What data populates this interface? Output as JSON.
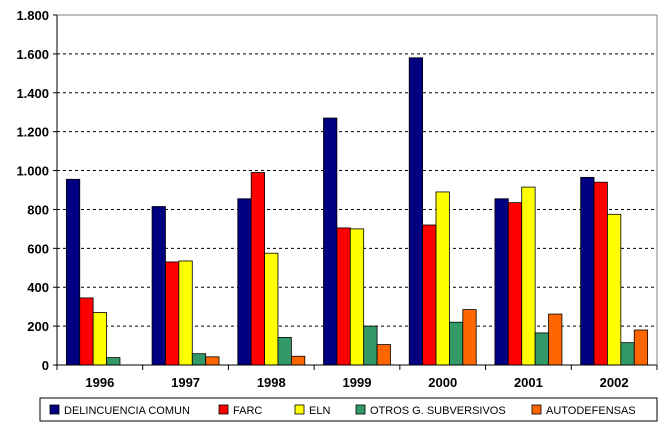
{
  "chart_data": {
    "type": "bar",
    "title": "",
    "xlabel": "",
    "ylabel": "",
    "ylim": [
      0,
      1800
    ],
    "yticks": [
      0,
      200,
      400,
      600,
      800,
      1000,
      1200,
      1400,
      1600,
      1800
    ],
    "ytick_labels": [
      "0",
      "200",
      "400",
      "600",
      "800",
      "1.000",
      "1.200",
      "1.400",
      "1.600",
      "1.800"
    ],
    "grid": "horizontal-dashed",
    "legend_position": "bottom",
    "categories": [
      "1996",
      "1997",
      "1998",
      "1999",
      "2000",
      "2001",
      "2002"
    ],
    "series": [
      {
        "name": "DELINCUENCIA COMUN",
        "color": "#000080",
        "values": [
          955,
          815,
          855,
          1270,
          1580,
          855,
          965
        ]
      },
      {
        "name": "FARC",
        "color": "#ff0000",
        "values": [
          345,
          530,
          990,
          705,
          720,
          835,
          940
        ]
      },
      {
        "name": "ELN",
        "color": "#ffff00",
        "values": [
          270,
          535,
          575,
          700,
          890,
          915,
          775
        ]
      },
      {
        "name": "OTROS G. SUBVERSIVOS",
        "color": "#339966",
        "values": [
          38,
          58,
          142,
          200,
          220,
          165,
          115
        ]
      },
      {
        "name": "AUTODEFENSAS",
        "color": "#ff6600",
        "values": [
          0,
          42,
          45,
          105,
          285,
          262,
          180
        ]
      }
    ]
  }
}
